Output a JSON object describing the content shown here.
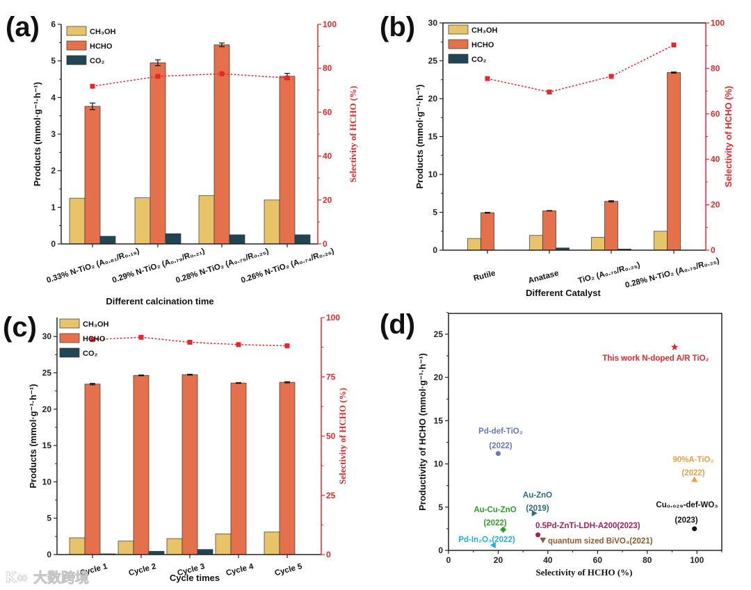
{
  "colors": {
    "ch3oh": "#e8c36a",
    "hcho": "#e5704c",
    "co2": "#1f4652",
    "selectivity": "#e8262a"
  },
  "watermark": "大数跨境",
  "chart_data": [
    {
      "panel": "(a)",
      "type": "bar",
      "xlabel": "Different calcination time",
      "ylabel": "Products (mmol·g⁻¹·h⁻¹)",
      "y2label": "Selectivity of HCHO (%)",
      "ylim": [
        0,
        6
      ],
      "yticks": [
        0,
        1,
        2,
        3,
        4,
        5,
        6
      ],
      "y2lim": [
        0,
        100
      ],
      "y2ticks": [
        0,
        20,
        40,
        60,
        80,
        100
      ],
      "legend": "top-left",
      "categories": [
        "0.33% N-TiO₂ (A₀.₈₁/R₀.₁₉)",
        "0.29% N-TiO₂ (A₀.₇₉/R₀.₂₁)",
        "0.28% N-TiO₂ (A₀.₇₅/R₀.₂₅)",
        "0.26% N-TiO₂ (A₀.₇₄/R₀.₂₆)"
      ],
      "series": [
        {
          "name": "CH₃OH",
          "values": [
            1.25,
            1.26,
            1.32,
            1.2
          ]
        },
        {
          "name": "HCHO",
          "values": [
            3.76,
            4.95,
            5.44,
            4.58
          ],
          "error": [
            0.09,
            0.08,
            0.05,
            0.08
          ]
        },
        {
          "name": "CO₂",
          "values": [
            0.21,
            0.28,
            0.25,
            0.25
          ]
        }
      ],
      "line": {
        "name": "Selectivity of HCHO",
        "values": [
          71.8,
          76.3,
          77.5,
          75.6
        ]
      }
    },
    {
      "panel": "(b)",
      "type": "bar",
      "xlabel": "Different Catalyst",
      "ylabel": "Products (mmol·g⁻¹·h⁻¹)",
      "y2label": "Selectivity of HCHO (%)",
      "ylim": [
        0,
        30
      ],
      "yticks": [
        0,
        5,
        10,
        15,
        20,
        25,
        30
      ],
      "y2lim": [
        0,
        100
      ],
      "y2ticks": [
        0,
        20,
        40,
        60,
        80,
        100
      ],
      "legend": "top-left",
      "categories": [
        "Rutile",
        "Anatase",
        "TiO₂ (A₀.₇₅/R₀.₂₅)",
        "0.28% N-TiO₂ (A₀.₇₅/R₀.₂₅)"
      ],
      "series": [
        {
          "name": "CH₃OH",
          "values": [
            1.55,
            1.95,
            1.7,
            2.5
          ]
        },
        {
          "name": "HCHO",
          "values": [
            4.95,
            5.2,
            6.45,
            23.45
          ],
          "error": [
            0.05,
            0.03,
            0.08,
            0.08
          ]
        },
        {
          "name": "CO₂",
          "values": [
            0.0,
            0.3,
            0.15,
            0.0
          ]
        }
      ],
      "line": {
        "name": "Selectivity of HCHO",
        "values": [
          75.5,
          69.6,
          76.5,
          90.3
        ]
      }
    },
    {
      "panel": "(c)",
      "type": "bar",
      "xlabel": "Cycle times",
      "ylabel": "Products (mmol·g⁻¹·h⁻¹)",
      "y2label": "Selectivity of HCHO (%)",
      "ylim": [
        0,
        32.6
      ],
      "yticks": [
        0,
        5,
        10,
        15,
        20,
        25,
        30
      ],
      "y2lim": [
        0,
        100
      ],
      "y2ticks": [
        0,
        25,
        50,
        75,
        100
      ],
      "legend": "top-left",
      "categories": [
        "Cycle 1",
        "Cycle 2",
        "Cycle 3",
        "Cycle 4",
        "Cycle 5"
      ],
      "series": [
        {
          "name": "CH₃OH",
          "values": [
            2.3,
            1.85,
            2.2,
            2.85,
            3.1
          ]
        },
        {
          "name": "HCHO",
          "values": [
            23.45,
            24.65,
            24.75,
            23.6,
            23.7
          ],
          "error": [
            0.1,
            0.05,
            0.06,
            0.05,
            0.08
          ]
        },
        {
          "name": "CO₂",
          "values": [
            0.1,
            0.45,
            0.7,
            0.0,
            0.0
          ]
        }
      ],
      "line": {
        "name": "Selectivity of HCHO",
        "values": [
          90.7,
          91.7,
          89.6,
          88.6,
          88.1
        ]
      }
    },
    {
      "panel": "(d)",
      "type": "scatter",
      "xlabel": "Selectivity of HCHO (%)",
      "ylabel": "Productivity of HCHO (mmol·g⁻¹·h⁻¹)",
      "xlim": [
        0,
        110
      ],
      "xticks": [
        0,
        20,
        40,
        60,
        80,
        100
      ],
      "ylim": [
        0,
        27.4
      ],
      "yticks": [
        0,
        5,
        10,
        15,
        20,
        25
      ],
      "points": [
        {
          "label": [
            "This work N-doped A/R TiO₂"
          ],
          "x": 91,
          "y": 23.5,
          "marker": "star",
          "color": "#e8262a"
        },
        {
          "label": [
            "Pd-def-TiO₂",
            "(2022)"
          ],
          "x": 20,
          "y": 11.2,
          "marker": "circle",
          "color": "#6a75c0"
        },
        {
          "label": [
            "90%A-TiO₂",
            "(2022)"
          ],
          "x": 99,
          "y": 8.2,
          "marker": "triangle-up",
          "color": "#f0a040"
        },
        {
          "label": [
            "Au-ZnO",
            "(2019)"
          ],
          "x": 34.5,
          "y": 4.3,
          "marker": "triangle-right",
          "color": "#2a6a80"
        },
        {
          "label": [
            "Au-Cu-ZnO",
            "(2022)"
          ],
          "x": 22,
          "y": 2.4,
          "marker": "diamond",
          "color": "#2aa02a"
        },
        {
          "label": [
            "Cu₀.₀₂₉-def-WO₃",
            "(2023)"
          ],
          "x": 99,
          "y": 2.5,
          "marker": "circle",
          "color": "#111111"
        },
        {
          "label": [
            "0.5Pd-ZnTi-LDH-A200(2023)"
          ],
          "x": 36,
          "y": 1.8,
          "marker": "circle",
          "color": "#a02060"
        },
        {
          "label": [
            "quantum sized BiVO₄(2021)"
          ],
          "x": 38,
          "y": 1.2,
          "marker": "triangle-down",
          "color": "#8b5a2b"
        },
        {
          "label": [
            "Pd-In₂O₃(2022)"
          ],
          "x": 18,
          "y": 0.6,
          "marker": "triangle-left",
          "color": "#20b0e0"
        }
      ]
    }
  ]
}
